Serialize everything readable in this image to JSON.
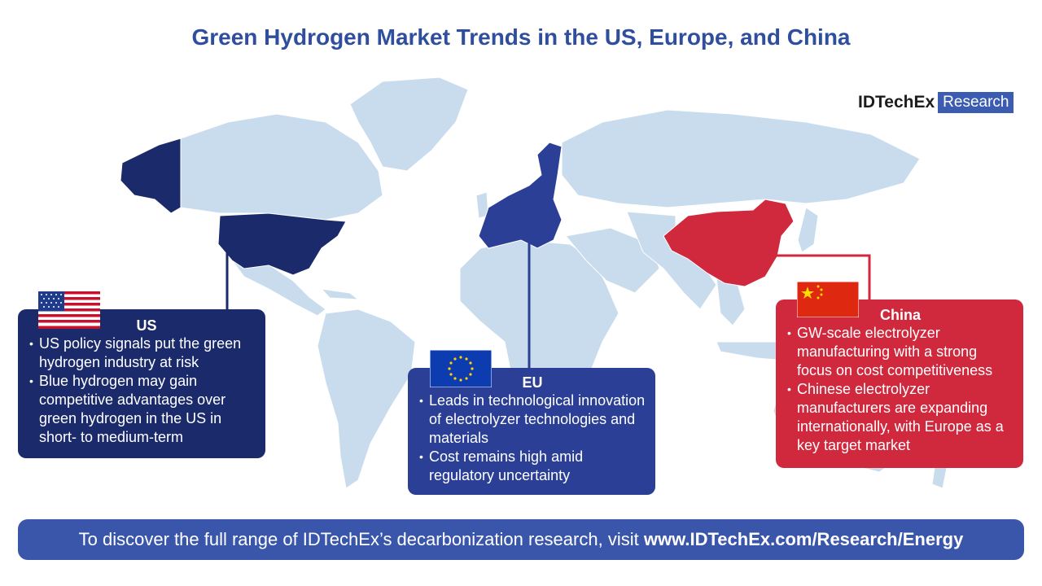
{
  "title": "Green Hydrogen Market Trends in the US, Europe, and China",
  "brand": {
    "name": "IDTechEx",
    "tag": "Research"
  },
  "colors": {
    "land": "#c9dcee",
    "us": "#1b2a6b",
    "eu": "#2a3f95",
    "china": "#d0283d",
    "footer": "#3a56ab"
  },
  "regions": {
    "us": {
      "heading": "US",
      "flag": "us-flag-icon",
      "bullets": [
        "US policy signals put the green hydrogen industry at risk",
        "Blue hydrogen may gain competitive advantages over green hydrogen in the US in short- to medium-term"
      ]
    },
    "eu": {
      "heading": "EU",
      "flag": "eu-flag-icon",
      "bullets": [
        "Leads in technological innovation of electrolyzer technologies and materials",
        "Cost remains high amid regulatory uncertainty"
      ]
    },
    "china": {
      "heading": "China",
      "flag": "china-flag-icon",
      "bullets": [
        "GW-scale electrolyzer manufacturing with a strong focus on cost competitiveness",
        "Chinese electrolyzer manufacturers are expanding internationally, with Europe as a key target market"
      ]
    }
  },
  "footer": {
    "text": "To discover the full range of IDTechEx’s decarbonization research, visit",
    "link": "www.IDTechEx.com/Research/Energy"
  }
}
